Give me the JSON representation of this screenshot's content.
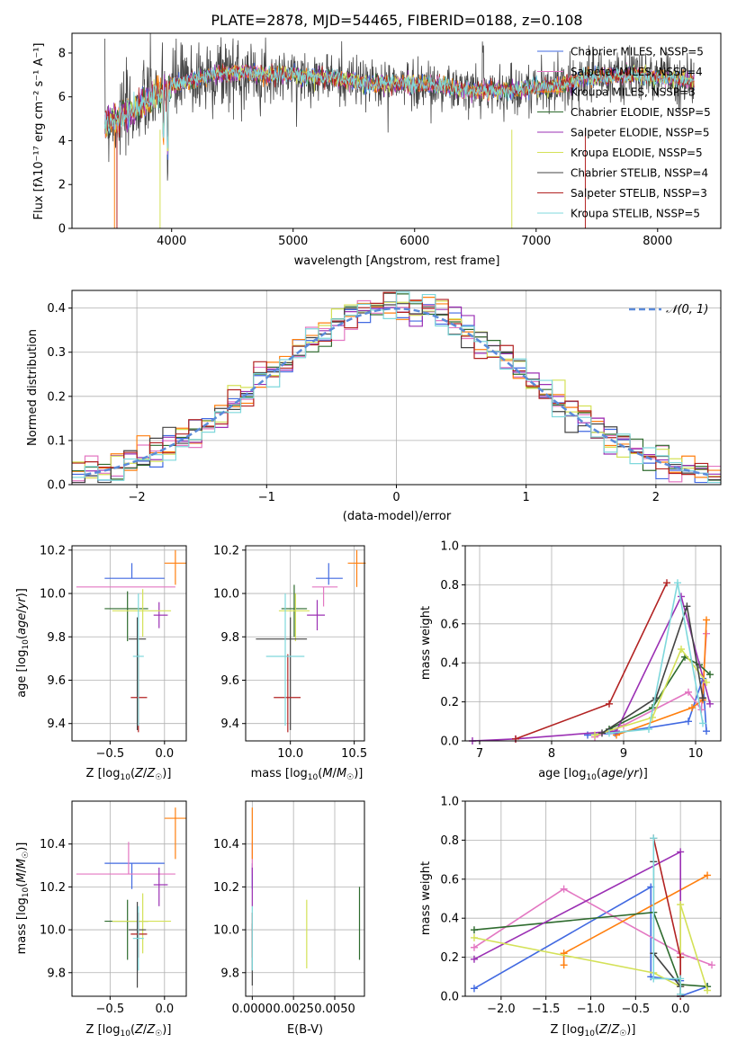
{
  "chart_data": [
    {
      "id": "spectrum",
      "type": "line",
      "title": "PLATE=2878, MJD=54465, FIBERID=0188, z=0.108",
      "xlabel": "wavelength [Angstrom, rest frame]",
      "ylabel": "Flux [fλ10⁻¹⁷ erg cm⁻² s⁻¹ A⁻¹]",
      "xlim": [
        3180,
        8520
      ],
      "ylim": [
        0,
        8.9
      ],
      "xticks": [
        4000,
        5000,
        6000,
        7000,
        8000
      ],
      "yticks": [
        0,
        2,
        4,
        6,
        8
      ],
      "legend": "top-right",
      "grid": false,
      "series": [
        {
          "name": "Chabrier MILES, NSSP=5",
          "color": "#4169e1"
        },
        {
          "name": "Salpeter MILES, NSSP=4",
          "color": "#e377c2"
        },
        {
          "name": "Kroupa MILES, NSSP=3",
          "color": "#ff7f0e"
        },
        {
          "name": "Chabrier ELODIE, NSSP=5",
          "color": "#2e6b2e"
        },
        {
          "name": "Salpeter ELODIE, NSSP=5",
          "color": "#9b30b4"
        },
        {
          "name": "Kroupa ELODIE, NSSP=5",
          "color": "#d4e157"
        },
        {
          "name": "Chabrier STELIB, NSSP=4",
          "color": "#444444"
        },
        {
          "name": "Salpeter STELIB, NSSP=3",
          "color": "#b22222"
        },
        {
          "name": "Kroupa STELIB, NSSP=5",
          "color": "#7fd8dc"
        }
      ],
      "data_profile": {
        "x": [
          3450,
          3600,
          3750,
          3900,
          4050,
          4200,
          4400,
          4600,
          4800,
          5000,
          5200,
          5400,
          5600,
          5800,
          6000,
          6200,
          6400,
          6600,
          6800,
          7000,
          7200,
          7400,
          7600,
          7800,
          8000,
          8200,
          8300
        ],
        "y": [
          4.8,
          5.1,
          5.6,
          6.2,
          6.6,
          6.8,
          7.1,
          7.1,
          7.0,
          7.0,
          6.9,
          6.8,
          6.6,
          6.6,
          6.6,
          6.5,
          6.3,
          6.3,
          6.3,
          6.4,
          6.5,
          6.9,
          6.9,
          7.0,
          6.9,
          6.8,
          6.7
        ]
      }
    },
    {
      "id": "residuals",
      "type": "histogram",
      "xlabel": "(data-model)/error",
      "ylabel": "Normed distribution",
      "xlim": [
        -2.5,
        2.5
      ],
      "ylim": [
        0,
        0.44
      ],
      "xticks": [
        -2,
        -1,
        0,
        1,
        2
      ],
      "yticks": [
        0.0,
        0.1,
        0.2,
        0.3,
        0.4
      ],
      "grid": true,
      "legend_label": "𝒩(0, 1)",
      "curve_color": "#5b8bd9",
      "bin_width": 0.1
    },
    {
      "id": "age-vs-Z",
      "type": "errorbar",
      "xlabel": "Z [log10(Z/Z☉)]",
      "ylabel": "age  [log10(age/yr)]",
      "xlim": [
        -0.85,
        0.2
      ],
      "ylim": [
        9.32,
        10.22
      ],
      "xticks": [
        -0.5,
        0.0
      ],
      "yticks": [
        9.4,
        9.6,
        9.8,
        10.0,
        10.2
      ],
      "grid": true,
      "points": [
        {
          "x": -0.3,
          "xerr": [
            0.25,
            0.3
          ],
          "y": 10.07,
          "yerr": [
            0.0,
            0.07
          ],
          "color": "#4169e1"
        },
        {
          "x": -0.33,
          "xerr": [
            0.48,
            0.43
          ],
          "y": 10.03,
          "yerr": [
            0.0,
            0.0
          ],
          "color": "#e377c2"
        },
        {
          "x": 0.1,
          "xerr": [
            0.1,
            0.1
          ],
          "y": 10.14,
          "yerr": [
            0.1,
            0.06
          ],
          "color": "#ff7f0e"
        },
        {
          "x": -0.34,
          "xerr": [
            0.21,
            0.19
          ],
          "y": 9.93,
          "yerr": [
            0.15,
            0.08
          ],
          "color": "#2e6b2e"
        },
        {
          "x": -0.05,
          "xerr": [
            0.05,
            0.08
          ],
          "y": 9.9,
          "yerr": [
            0.06,
            0.06
          ],
          "color": "#9b30b4"
        },
        {
          "x": -0.2,
          "xerr": [
            0.28,
            0.26
          ],
          "y": 9.92,
          "yerr": [
            0.12,
            0.1
          ],
          "color": "#d4e157"
        },
        {
          "x": -0.25,
          "xerr": [
            0.08,
            0.08
          ],
          "y": 9.79,
          "yerr": [
            0.42,
            0.1
          ],
          "color": "#444444"
        },
        {
          "x": -0.24,
          "xerr": [
            0.07,
            0.08
          ],
          "y": 9.52,
          "yerr": [
            0.16,
            0.2
          ],
          "color": "#b22222"
        },
        {
          "x": -0.24,
          "xerr": [
            0.05,
            0.05
          ],
          "y": 9.71,
          "yerr": [
            0.32,
            0.29
          ],
          "color": "#7fd8dc"
        }
      ]
    },
    {
      "id": "age-vs-mass",
      "type": "errorbar",
      "xlabel": "mass [log10(M/M☉)]",
      "xlim": [
        9.65,
        10.58
      ],
      "ylim": [
        9.32,
        10.22
      ],
      "xticks": [
        10.0,
        10.5
      ],
      "yticks": [
        9.4,
        9.6,
        9.8,
        10.0,
        10.2
      ],
      "grid": true,
      "points": [
        {
          "x": 10.3,
          "xerr": [
            0.1,
            0.11
          ],
          "y": 10.07,
          "yerr": [
            0.03,
            0.07
          ],
          "color": "#4169e1"
        },
        {
          "x": 10.26,
          "xerr": [
            0.09,
            0.11
          ],
          "y": 10.03,
          "yerr": [
            0.09,
            0.0
          ],
          "color": "#e377c2"
        },
        {
          "x": 10.52,
          "xerr": [
            0.07,
            0.07
          ],
          "y": 10.14,
          "yerr": [
            0.11,
            0.06
          ],
          "color": "#ff7f0e"
        },
        {
          "x": 10.03,
          "xerr": [
            0.1,
            0.1
          ],
          "y": 9.93,
          "yerr": [
            0.13,
            0.11
          ],
          "color": "#2e6b2e"
        },
        {
          "x": 10.21,
          "xerr": [
            0.08,
            0.06
          ],
          "y": 9.9,
          "yerr": [
            0.07,
            0.07
          ],
          "color": "#9b30b4"
        },
        {
          "x": 10.04,
          "xerr": [
            0.13,
            0.11
          ],
          "y": 9.92,
          "yerr": [
            0.14,
            0.08
          ],
          "color": "#d4e157"
        },
        {
          "x": 10.0,
          "xerr": [
            0.27,
            0.13
          ],
          "y": 9.79,
          "yerr": [
            0.42,
            0.1
          ],
          "color": "#444444"
        },
        {
          "x": 9.98,
          "xerr": [
            0.11,
            0.1
          ],
          "y": 9.52,
          "yerr": [
            0.16,
            0.2
          ],
          "color": "#b22222"
        },
        {
          "x": 9.96,
          "xerr": [
            0.15,
            0.15
          ],
          "y": 9.71,
          "yerr": [
            0.32,
            0.29
          ],
          "color": "#7fd8dc"
        }
      ]
    },
    {
      "id": "weight-vs-age",
      "type": "line",
      "xlabel": "age  [log10(age/yr)]",
      "ylabel": "mass weight",
      "xlim": [
        6.8,
        10.35
      ],
      "ylim": [
        0,
        1.0
      ],
      "xticks": [
        7,
        8,
        9,
        10
      ],
      "yticks": [
        0.0,
        0.2,
        0.4,
        0.6,
        0.8,
        1.0
      ],
      "grid": true,
      "series": [
        {
          "color": "#4169e1",
          "x": [
            8.5,
            8.88,
            9.9,
            10.1,
            10.15
          ],
          "y": [
            0.03,
            0.04,
            0.1,
            0.32,
            0.05
          ]
        },
        {
          "color": "#e377c2",
          "x": [
            8.6,
            9.0,
            9.9,
            10.08,
            10.15
          ],
          "y": [
            0.02,
            0.08,
            0.25,
            0.16,
            0.55
          ]
        },
        {
          "color": "#ff7f0e",
          "x": [
            8.9,
            9.95,
            10.1,
            10.15
          ],
          "y": [
            0.03,
            0.17,
            0.21,
            0.62
          ]
        },
        {
          "color": "#2e6b2e",
          "x": [
            8.8,
            9.4,
            9.85,
            10.05,
            10.2
          ],
          "y": [
            0.06,
            0.17,
            0.43,
            0.39,
            0.34
          ]
        },
        {
          "color": "#9b30b4",
          "x": [
            6.9,
            7.5,
            8.9,
            9.8,
            10.2
          ],
          "y": [
            0.0,
            0.01,
            0.05,
            0.74,
            0.19
          ]
        },
        {
          "color": "#d4e157",
          "x": [
            8.6,
            9.4,
            9.8,
            10.15
          ],
          "y": [
            0.03,
            0.12,
            0.47,
            0.3
          ]
        },
        {
          "color": "#444444",
          "x": [
            8.7,
            9.45,
            9.88,
            10.1
          ],
          "y": [
            0.04,
            0.22,
            0.69,
            0.22
          ]
        },
        {
          "color": "#b22222",
          "x": [
            7.5,
            8.8,
            9.6
          ],
          "y": [
            0.01,
            0.19,
            0.81
          ]
        },
        {
          "color": "#7fd8dc",
          "x": [
            8.8,
            9.35,
            9.75,
            10.1
          ],
          "y": [
            0.04,
            0.06,
            0.81,
            0.09
          ]
        }
      ]
    },
    {
      "id": "mass-vs-Z",
      "type": "errorbar",
      "xlabel": "Z [log10(Z/Z☉)]",
      "ylabel": "mass [log10(M/M☉)]",
      "xlim": [
        -0.85,
        0.2
      ],
      "ylim": [
        9.69,
        10.6
      ],
      "xticks": [
        -0.5,
        0.0
      ],
      "yticks": [
        9.8,
        10.0,
        10.2,
        10.4
      ],
      "grid": true,
      "points": [
        {
          "x": -0.3,
          "xerr": [
            0.25,
            0.3
          ],
          "y": 10.31,
          "yerr": [
            0.12,
            0.0
          ],
          "color": "#4169e1"
        },
        {
          "x": -0.33,
          "xerr": [
            0.48,
            0.43
          ],
          "y": 10.26,
          "yerr": [
            0.0,
            0.15
          ],
          "color": "#e377c2"
        },
        {
          "x": 0.1,
          "xerr": [
            0.1,
            0.1
          ],
          "y": 10.52,
          "yerr": [
            0.19,
            0.05
          ],
          "color": "#ff7f0e"
        },
        {
          "x": -0.34,
          "xerr": [
            0.21,
            0.19
          ],
          "y": 10.04,
          "yerr": [
            0.18,
            0.1
          ],
          "color": "#2e6b2e"
        },
        {
          "x": -0.05,
          "xerr": [
            0.05,
            0.08
          ],
          "y": 10.21,
          "yerr": [
            0.1,
            0.08
          ],
          "color": "#9b30b4"
        },
        {
          "x": -0.2,
          "xerr": [
            0.28,
            0.26
          ],
          "y": 10.04,
          "yerr": [
            0.15,
            0.13
          ],
          "color": "#d4e157"
        },
        {
          "x": -0.25,
          "xerr": [
            0.08,
            0.08
          ],
          "y": 10.0,
          "yerr": [
            0.27,
            0.13
          ],
          "color": "#444444"
        },
        {
          "x": -0.24,
          "xerr": [
            0.07,
            0.08
          ],
          "y": 9.98,
          "yerr": [
            0.11,
            0.1
          ],
          "color": "#b22222"
        },
        {
          "x": -0.24,
          "xerr": [
            0.05,
            0.05
          ],
          "y": 9.96,
          "yerr": [
            0.15,
            0.15
          ],
          "color": "#7fd8dc"
        }
      ]
    },
    {
      "id": "mass-vs-ebv",
      "type": "errorbar",
      "xlabel": "E(B-V)",
      "xlim": [
        -0.0004,
        0.0068
      ],
      "ylim": [
        9.69,
        10.6
      ],
      "xticks": [
        0.0,
        0.0025,
        0.005
      ],
      "xticklabels": [
        "0.0000",
        "0.0025",
        "0.0050"
      ],
      "yticks": [
        9.8,
        10.0,
        10.2,
        10.4
      ],
      "grid": true,
      "points": [
        {
          "x": 0.0,
          "y": 10.31,
          "yerr": [
            0.12,
            0.0
          ],
          "color": "#4169e1"
        },
        {
          "x": 0.0,
          "y": 10.26,
          "yerr": [
            0.0,
            0.15
          ],
          "color": "#e377c2"
        },
        {
          "x": 0.0,
          "y": 10.52,
          "yerr": [
            0.19,
            0.05
          ],
          "color": "#ff7f0e"
        },
        {
          "x": 0.0065,
          "y": 10.04,
          "yerr": [
            0.18,
            0.16
          ],
          "color": "#2e6b2e"
        },
        {
          "x": 0.0,
          "y": 10.21,
          "yerr": [
            0.1,
            0.08
          ],
          "color": "#9b30b4"
        },
        {
          "x": 0.0033,
          "y": 9.98,
          "yerr": [
            0.16,
            0.16
          ],
          "color": "#d4e157"
        },
        {
          "x": 0.0,
          "y": 9.9,
          "yerr": [
            0.16,
            0.13
          ],
          "color": "#444444"
        },
        {
          "x": 0.0,
          "y": 9.98,
          "yerr": [
            0.11,
            0.1
          ],
          "color": "#b22222"
        },
        {
          "x": 0.0,
          "y": 9.96,
          "yerr": [
            0.15,
            0.15
          ],
          "color": "#7fd8dc"
        }
      ]
    },
    {
      "id": "weight-vs-Z",
      "type": "line",
      "xlabel": "Z [log10(Z/Z☉)]",
      "ylabel": "mass weight",
      "xlim": [
        -2.4,
        0.45
      ],
      "ylim": [
        0,
        1.0
      ],
      "xticks": [
        -2.0,
        -1.5,
        -1.0,
        -0.5,
        0.0
      ],
      "yticks": [
        0.0,
        0.2,
        0.4,
        0.6,
        0.8,
        1.0
      ],
      "grid": true,
      "series": [
        {
          "color": "#4169e1",
          "x": [
            -2.3,
            -0.33,
            -0.33,
            0.0,
            0.0,
            0.3
          ],
          "y": [
            0.04,
            0.56,
            0.1,
            0.08,
            0.0,
            0.05
          ]
        },
        {
          "color": "#e377c2",
          "x": [
            -2.3,
            -1.3,
            0.0,
            0.35
          ],
          "y": [
            0.25,
            0.55,
            0.22,
            0.16
          ]
        },
        {
          "color": "#ff7f0e",
          "x": [
            -1.3,
            -1.3,
            0.3
          ],
          "y": [
            0.16,
            0.22,
            0.62
          ]
        },
        {
          "color": "#2e6b2e",
          "x": [
            -2.3,
            -0.3,
            0.0,
            0.3
          ],
          "y": [
            0.34,
            0.43,
            0.06,
            0.05
          ]
        },
        {
          "color": "#9b30b4",
          "x": [
            -2.3,
            -0.0,
            -0.0
          ],
          "y": [
            0.19,
            0.74,
            0.05
          ]
        },
        {
          "color": "#d4e157",
          "x": [
            -2.3,
            -0.3,
            0.0,
            0.0,
            0.3
          ],
          "y": [
            0.3,
            0.12,
            0.05,
            0.47,
            0.03
          ]
        },
        {
          "color": "#444444",
          "x": [
            -0.3,
            -0.3,
            0.0,
            0.0
          ],
          "y": [
            0.69,
            0.22,
            0.05,
            0.01
          ]
        },
        {
          "color": "#b22222",
          "x": [
            -0.3,
            0.0,
            0.0
          ],
          "y": [
            0.81,
            0.2,
            0.0
          ]
        },
        {
          "color": "#7fd8dc",
          "x": [
            -0.3,
            -0.3,
            0.0,
            0.0
          ],
          "y": [
            0.81,
            0.09,
            0.09,
            0.01
          ]
        }
      ]
    }
  ]
}
